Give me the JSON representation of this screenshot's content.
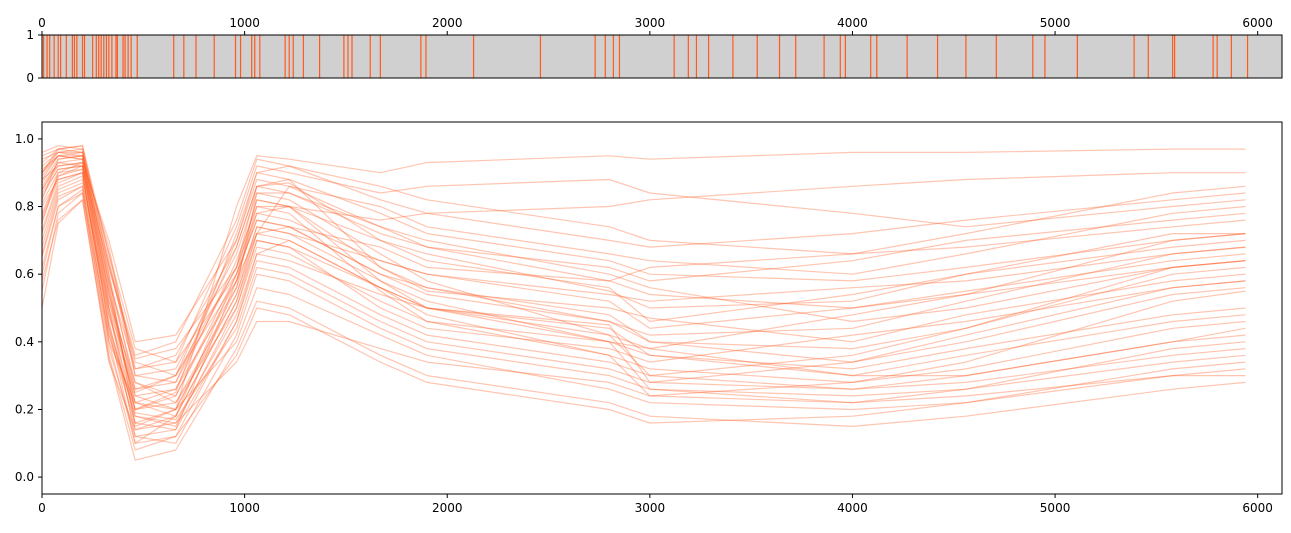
{
  "chart_data": [
    {
      "type": "event",
      "panel": "top-strip",
      "xlim": [
        0,
        6120
      ],
      "ylim": [
        0,
        1
      ],
      "xticks": [
        0,
        1000,
        2000,
        3000,
        4000,
        5000,
        6000
      ],
      "xtick_position": "top",
      "yticks": [
        0,
        1
      ],
      "background_color": "#d0d0d0",
      "event_color": "#ff5a1f",
      "events": [
        8,
        25,
        38,
        60,
        80,
        92,
        120,
        150,
        160,
        172,
        200,
        210,
        250,
        268,
        280,
        292,
        305,
        318,
        330,
        345,
        365,
        372,
        400,
        410,
        425,
        440,
        470,
        650,
        700,
        760,
        850,
        955,
        980,
        1035,
        1050,
        1075,
        1200,
        1220,
        1240,
        1290,
        1370,
        1490,
        1510,
        1530,
        1620,
        1670,
        1870,
        1895,
        2130,
        2460,
        2730,
        2780,
        2820,
        2850,
        3120,
        3190,
        3230,
        3290,
        3410,
        3530,
        3640,
        3720,
        3860,
        3940,
        3965,
        4090,
        4120,
        4270,
        4420,
        4560,
        4710,
        4890,
        4950,
        5110,
        5390,
        5460,
        5580,
        5590,
        5780,
        5800,
        5870,
        5950
      ]
    },
    {
      "type": "line",
      "panel": "main",
      "xlim": [
        0,
        6120
      ],
      "ylim": [
        -0.05,
        1.05
      ],
      "xticks": [
        0,
        1000,
        2000,
        3000,
        4000,
        5000,
        6000
      ],
      "yticks": [
        0.0,
        0.2,
        0.4,
        0.6,
        0.8,
        1.0
      ],
      "ytick_labels": [
        "0.0",
        "0.2",
        "0.4",
        "0.6",
        "0.8",
        "1.0"
      ],
      "line_color": "#ff5a1f",
      "line_alpha": 0.35,
      "grid": false,
      "legend": "none",
      "x": [
        0,
        80,
        200,
        330,
        460,
        660,
        960,
        1060,
        1220,
        1670,
        1900,
        2800,
        3000,
        4000,
        4560,
        5580,
        5940
      ],
      "series": [
        {
          "values": [
            0.9,
            0.95,
            0.94,
            0.68,
            0.3,
            0.28,
            0.68,
            0.86,
            0.87,
            0.7,
            0.66,
            0.55,
            0.5,
            0.52,
            0.6,
            0.72,
            0.72
          ]
        },
        {
          "values": [
            0.85,
            0.93,
            0.92,
            0.55,
            0.2,
            0.25,
            0.72,
            0.9,
            0.88,
            0.62,
            0.55,
            0.5,
            0.47,
            0.4,
            0.48,
            0.58,
            0.6
          ]
        },
        {
          "values": [
            0.92,
            0.96,
            0.96,
            0.6,
            0.15,
            0.2,
            0.8,
            0.95,
            0.94,
            0.9,
            0.93,
            0.95,
            0.94,
            0.96,
            0.96,
            0.97,
            0.97
          ]
        },
        {
          "values": [
            0.8,
            0.88,
            0.9,
            0.4,
            0.1,
            0.18,
            0.6,
            0.82,
            0.8,
            0.58,
            0.5,
            0.45,
            0.28,
            0.26,
            0.3,
            0.4,
            0.42
          ]
        },
        {
          "values": [
            0.7,
            0.85,
            0.88,
            0.5,
            0.25,
            0.3,
            0.58,
            0.72,
            0.74,
            0.68,
            0.62,
            0.58,
            0.62,
            0.66,
            0.68,
            0.74,
            0.76
          ]
        },
        {
          "values": [
            0.95,
            0.97,
            0.98,
            0.62,
            0.35,
            0.38,
            0.62,
            0.78,
            0.8,
            0.76,
            0.78,
            0.8,
            0.82,
            0.86,
            0.88,
            0.9,
            0.9
          ]
        },
        {
          "values": [
            0.88,
            0.92,
            0.93,
            0.45,
            0.18,
            0.15,
            0.5,
            0.68,
            0.66,
            0.52,
            0.46,
            0.4,
            0.38,
            0.3,
            0.36,
            0.46,
            0.48
          ]
        },
        {
          "values": [
            0.6,
            0.8,
            0.85,
            0.38,
            0.12,
            0.1,
            0.42,
            0.6,
            0.58,
            0.44,
            0.38,
            0.3,
            0.26,
            0.22,
            0.24,
            0.3,
            0.32
          ]
        },
        {
          "values": [
            0.75,
            0.9,
            0.93,
            0.7,
            0.4,
            0.42,
            0.7,
            0.88,
            0.86,
            0.8,
            0.74,
            0.66,
            0.64,
            0.6,
            0.66,
            0.78,
            0.8
          ]
        },
        {
          "values": [
            0.82,
            0.94,
            0.95,
            0.52,
            0.22,
            0.26,
            0.64,
            0.8,
            0.78,
            0.55,
            0.46,
            0.36,
            0.24,
            0.28,
            0.34,
            0.52,
            0.55
          ]
        },
        {
          "values": [
            0.9,
            0.96,
            0.97,
            0.58,
            0.28,
            0.22,
            0.54,
            0.74,
            0.72,
            0.64,
            0.6,
            0.52,
            0.44,
            0.5,
            0.55,
            0.64,
            0.66
          ]
        },
        {
          "values": [
            0.5,
            0.75,
            0.82,
            0.35,
            0.05,
            0.08,
            0.38,
            0.52,
            0.5,
            0.36,
            0.3,
            0.22,
            0.18,
            0.15,
            0.18,
            0.26,
            0.28
          ]
        },
        {
          "values": [
            0.93,
            0.97,
            0.96,
            0.66,
            0.32,
            0.34,
            0.74,
            0.92,
            0.9,
            0.84,
            0.86,
            0.88,
            0.84,
            0.78,
            0.74,
            0.8,
            0.82
          ]
        },
        {
          "values": [
            0.78,
            0.89,
            0.91,
            0.48,
            0.2,
            0.24,
            0.6,
            0.76,
            0.74,
            0.6,
            0.56,
            0.48,
            0.4,
            0.34,
            0.4,
            0.54,
            0.56
          ]
        },
        {
          "values": [
            0.86,
            0.93,
            0.94,
            0.56,
            0.24,
            0.2,
            0.56,
            0.84,
            0.82,
            0.66,
            0.58,
            0.42,
            0.3,
            0.36,
            0.44,
            0.62,
            0.64
          ]
        },
        {
          "values": [
            0.65,
            0.82,
            0.86,
            0.42,
            0.16,
            0.14,
            0.46,
            0.64,
            0.62,
            0.48,
            0.42,
            0.34,
            0.3,
            0.26,
            0.28,
            0.36,
            0.38
          ]
        },
        {
          "values": [
            0.96,
            0.98,
            0.97,
            0.64,
            0.3,
            0.32,
            0.66,
            0.84,
            0.84,
            0.72,
            0.68,
            0.62,
            0.58,
            0.64,
            0.7,
            0.76,
            0.78
          ]
        },
        {
          "values": [
            0.72,
            0.86,
            0.89,
            0.46,
            0.14,
            0.18,
            0.52,
            0.7,
            0.68,
            0.5,
            0.44,
            0.38,
            0.34,
            0.42,
            0.46,
            0.56,
            0.58
          ]
        },
        {
          "values": [
            0.84,
            0.91,
            0.92,
            0.54,
            0.26,
            0.28,
            0.62,
            0.86,
            0.84,
            0.74,
            0.7,
            0.6,
            0.56,
            0.46,
            0.5,
            0.62,
            0.64
          ]
        },
        {
          "values": [
            0.55,
            0.78,
            0.84,
            0.4,
            0.22,
            0.2,
            0.4,
            0.56,
            0.54,
            0.42,
            0.36,
            0.26,
            0.22,
            0.2,
            0.22,
            0.32,
            0.34
          ]
        },
        {
          "values": [
            0.89,
            0.95,
            0.95,
            0.6,
            0.26,
            0.3,
            0.7,
            0.9,
            0.92,
            0.86,
            0.82,
            0.74,
            0.7,
            0.66,
            0.72,
            0.84,
            0.86
          ]
        },
        {
          "values": [
            0.76,
            0.88,
            0.9,
            0.44,
            0.18,
            0.16,
            0.48,
            0.66,
            0.64,
            0.54,
            0.5,
            0.44,
            0.36,
            0.32,
            0.38,
            0.48,
            0.5
          ]
        },
        {
          "values": [
            0.91,
            0.95,
            0.94,
            0.5,
            0.12,
            0.14,
            0.58,
            0.8,
            0.8,
            0.62,
            0.56,
            0.46,
            0.42,
            0.44,
            0.52,
            0.66,
            0.68
          ]
        },
        {
          "values": [
            0.68,
            0.84,
            0.87,
            0.48,
            0.24,
            0.26,
            0.56,
            0.74,
            0.72,
            0.58,
            0.52,
            0.4,
            0.26,
            0.24,
            0.26,
            0.38,
            0.4
          ]
        },
        {
          "values": [
            0.87,
            0.94,
            0.95,
            0.57,
            0.19,
            0.17,
            0.44,
            0.62,
            0.6,
            0.46,
            0.4,
            0.32,
            0.28,
            0.34,
            0.42,
            0.56,
            0.58
          ]
        },
        {
          "values": [
            0.62,
            0.8,
            0.84,
            0.36,
            0.08,
            0.12,
            0.36,
            0.5,
            0.48,
            0.34,
            0.28,
            0.2,
            0.16,
            0.18,
            0.22,
            0.3,
            0.3
          ]
        },
        {
          "values": [
            0.94,
            0.96,
            0.95,
            0.63,
            0.36,
            0.4,
            0.76,
            0.94,
            0.92,
            0.82,
            0.78,
            0.7,
            0.68,
            0.72,
            0.76,
            0.82,
            0.84
          ]
        },
        {
          "values": [
            0.81,
            0.9,
            0.91,
            0.52,
            0.28,
            0.24,
            0.58,
            0.78,
            0.76,
            0.64,
            0.6,
            0.54,
            0.52,
            0.56,
            0.58,
            0.66,
            0.68
          ]
        },
        {
          "values": [
            0.73,
            0.87,
            0.9,
            0.44,
            0.1,
            0.12,
            0.46,
            0.66,
            0.7,
            0.56,
            0.48,
            0.36,
            0.32,
            0.28,
            0.32,
            0.44,
            0.46
          ]
        },
        {
          "values": [
            0.85,
            0.92,
            0.93,
            0.58,
            0.32,
            0.36,
            0.68,
            0.86,
            0.88,
            0.78,
            0.72,
            0.64,
            0.6,
            0.58,
            0.62,
            0.7,
            0.72
          ]
        },
        {
          "values": [
            0.58,
            0.76,
            0.82,
            0.34,
            0.14,
            0.16,
            0.34,
            0.46,
            0.46,
            0.38,
            0.34,
            0.28,
            0.24,
            0.22,
            0.26,
            0.34,
            0.36
          ]
        },
        {
          "values": [
            0.9,
            0.97,
            0.98,
            0.66,
            0.38,
            0.34,
            0.6,
            0.76,
            0.74,
            0.6,
            0.54,
            0.46,
            0.4,
            0.38,
            0.44,
            0.6,
            0.62
          ]
        },
        {
          "values": [
            0.66,
            0.83,
            0.86,
            0.42,
            0.2,
            0.22,
            0.5,
            0.7,
            0.68,
            0.56,
            0.5,
            0.42,
            0.38,
            0.48,
            0.54,
            0.7,
            0.72
          ]
        },
        {
          "values": [
            0.83,
            0.91,
            0.92,
            0.5,
            0.16,
            0.2,
            0.54,
            0.72,
            0.7,
            0.56,
            0.5,
            0.4,
            0.36,
            0.3,
            0.3,
            0.4,
            0.44
          ]
        },
        {
          "values": [
            0.77,
            0.89,
            0.92,
            0.62,
            0.34,
            0.3,
            0.62,
            0.82,
            0.8,
            0.7,
            0.64,
            0.56,
            0.46,
            0.54,
            0.6,
            0.68,
            0.7
          ]
        },
        {
          "values": [
            0.88,
            0.95,
            0.96,
            0.54,
            0.22,
            0.18,
            0.52,
            0.72,
            0.86,
            0.74,
            0.68,
            0.58,
            0.54,
            0.5,
            0.54,
            0.62,
            0.64
          ]
        }
      ]
    }
  ]
}
